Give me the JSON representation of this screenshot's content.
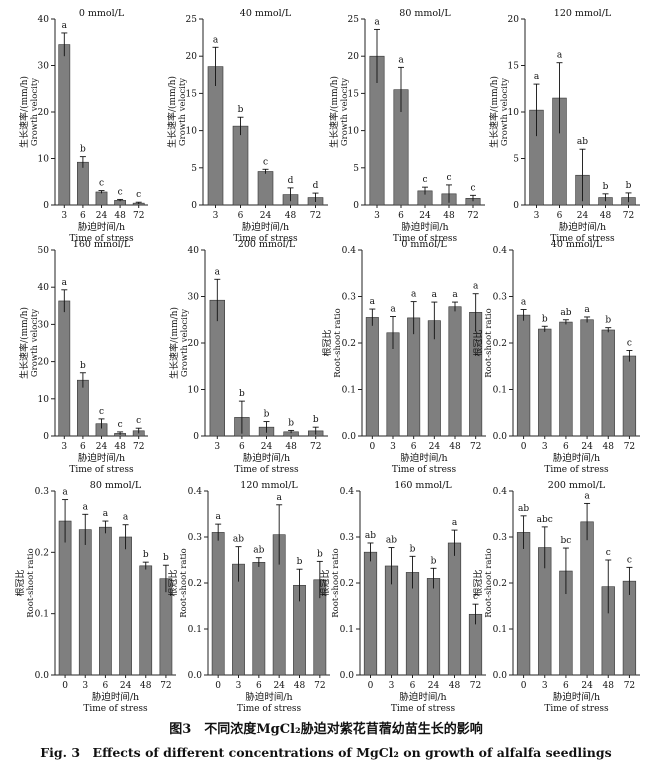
{
  "caption": {
    "cn": "图3　不同浓度MgCl₂胁迫对紫花苜蓿幼苗生长的影响",
    "en": "Fig. 3　Effects of different concentrations of MgCl₂ on growth of alfalfa seedlings"
  },
  "axis_text": {
    "xlabel_cn": "胁迫时间/h",
    "xlabel_en": "Time of stress",
    "gv_cn": "生长速率/(mm/h)",
    "gv_en": "Growth velocity",
    "rs_cn": "根冠比",
    "rs_en": "Root-shoot ratio"
  },
  "colors": {
    "bar": "#7f7f7f",
    "axis": "#222222"
  },
  "chart_data": [
    {
      "type": "bar",
      "title": "0 mmol/L",
      "categories": [
        "3",
        "6",
        "24",
        "48",
        "72"
      ],
      "values": [
        34.5,
        9.2,
        2.8,
        1.0,
        0.4
      ],
      "errors": [
        2.5,
        1.2,
        0.3,
        0.2,
        0.2
      ],
      "letters": [
        "a",
        "b",
        "c",
        "c",
        "c"
      ],
      "ylim": [
        0,
        40
      ],
      "yticks": [
        0,
        10,
        20,
        30,
        40
      ],
      "metric": "gv"
    },
    {
      "type": "bar",
      "title": "40 mmol/L",
      "categories": [
        "3",
        "6",
        "24",
        "48",
        "72"
      ],
      "values": [
        18.6,
        10.6,
        4.5,
        1.4,
        1.0
      ],
      "errors": [
        2.6,
        1.2,
        0.3,
        0.9,
        0.6
      ],
      "letters": [
        "a",
        "b",
        "c",
        "d",
        "d"
      ],
      "ylim": [
        0,
        25
      ],
      "yticks": [
        0,
        5,
        10,
        15,
        20,
        25
      ],
      "metric": "gv"
    },
    {
      "type": "bar",
      "title": "80 mmol/L",
      "categories": [
        "3",
        "6",
        "24",
        "48",
        "72"
      ],
      "values": [
        20.0,
        15.5,
        1.9,
        1.5,
        0.9
      ],
      "errors": [
        3.6,
        3.0,
        0.5,
        1.2,
        0.4
      ],
      "letters": [
        "a",
        "a",
        "c",
        "c",
        "c"
      ],
      "ylim": [
        0,
        25
      ],
      "yticks": [
        0,
        5,
        10,
        15,
        20,
        25
      ],
      "metric": "gv"
    },
    {
      "type": "bar",
      "title": "120 mmol/L",
      "categories": [
        "3",
        "6",
        "24",
        "48",
        "72"
      ],
      "values": [
        10.2,
        11.5,
        3.2,
        0.8,
        0.8
      ],
      "errors": [
        2.8,
        3.8,
        2.8,
        0.4,
        0.5
      ],
      "letters": [
        "a",
        "a",
        "ab",
        "b",
        "b"
      ],
      "ylim": [
        0,
        20
      ],
      "yticks": [
        0,
        5,
        10,
        15,
        20
      ],
      "metric": "gv"
    },
    {
      "type": "bar",
      "title": "160 mmol/L",
      "categories": [
        "3",
        "6",
        "24",
        "48",
        "72"
      ],
      "values": [
        36.3,
        15.0,
        3.3,
        0.7,
        1.4
      ],
      "errors": [
        3.0,
        2.0,
        1.3,
        0.4,
        0.7
      ],
      "letters": [
        "a",
        "b",
        "c",
        "c",
        "c"
      ],
      "ylim": [
        0,
        50
      ],
      "yticks": [
        0,
        10,
        20,
        30,
        40,
        50
      ],
      "metric": "gv"
    },
    {
      "type": "bar",
      "title": "200 mmol/L",
      "categories": [
        "3",
        "6",
        "24",
        "48",
        "72"
      ],
      "values": [
        29.2,
        4.0,
        1.9,
        0.9,
        1.1
      ],
      "errors": [
        4.5,
        3.5,
        1.2,
        0.3,
        0.8
      ],
      "letters": [
        "a",
        "b",
        "b",
        "b",
        "b"
      ],
      "ylim": [
        0,
        40
      ],
      "yticks": [
        0,
        10,
        20,
        30,
        40
      ],
      "metric": "gv"
    },
    {
      "type": "bar",
      "title": "0 mmol/L",
      "categories": [
        "0",
        "3",
        "6",
        "24",
        "48",
        "72"
      ],
      "values": [
        0.255,
        0.222,
        0.254,
        0.248,
        0.278,
        0.266
      ],
      "errors": [
        0.018,
        0.035,
        0.035,
        0.04,
        0.01,
        0.04
      ],
      "letters": [
        "a",
        "a",
        "a",
        "a",
        "a",
        "a"
      ],
      "ylim": [
        0,
        0.4
      ],
      "yticks": [
        0,
        0.1,
        0.2,
        0.3,
        0.4
      ],
      "metric": "rs"
    },
    {
      "type": "bar",
      "title": "40 mmol/L",
      "categories": [
        "0",
        "3",
        "6",
        "24",
        "48",
        "72"
      ],
      "values": [
        0.26,
        0.23,
        0.245,
        0.25,
        0.228,
        0.172
      ],
      "errors": [
        0.012,
        0.006,
        0.005,
        0.006,
        0.005,
        0.012
      ],
      "letters": [
        "a",
        "b",
        "ab",
        "a",
        "b",
        "c"
      ],
      "ylim": [
        0,
        0.4
      ],
      "yticks": [
        0,
        0.1,
        0.2,
        0.3,
        0.4
      ],
      "metric": "rs"
    },
    {
      "type": "bar",
      "title": "80 mmol/L",
      "categories": [
        "0",
        "3",
        "6",
        "24",
        "48",
        "72"
      ],
      "values": [
        0.251,
        0.237,
        0.241,
        0.225,
        0.178,
        0.157
      ],
      "errors": [
        0.035,
        0.025,
        0.01,
        0.02,
        0.006,
        0.022
      ],
      "letters": [
        "a",
        "a",
        "a",
        "a",
        "b",
        "b"
      ],
      "ylim": [
        0,
        0.3
      ],
      "yticks": [
        0,
        0.1,
        0.2,
        0.3
      ],
      "metric": "rs"
    },
    {
      "type": "bar",
      "title": "120 mmol/L",
      "categories": [
        "0",
        "3",
        "6",
        "24",
        "48",
        "72"
      ],
      "values": [
        0.31,
        0.241,
        0.245,
        0.305,
        0.195,
        0.207
      ],
      "errors": [
        0.018,
        0.038,
        0.01,
        0.065,
        0.035,
        0.04
      ],
      "letters": [
        "a",
        "ab",
        "ab",
        "a",
        "b",
        "b"
      ],
      "ylim": [
        0,
        0.4
      ],
      "yticks": [
        0,
        0.1,
        0.2,
        0.3,
        0.4
      ],
      "metric": "rs"
    },
    {
      "type": "bar",
      "title": "160 mmol/L",
      "categories": [
        "0",
        "3",
        "6",
        "24",
        "48",
        "72"
      ],
      "values": [
        0.267,
        0.237,
        0.223,
        0.21,
        0.287,
        0.132
      ],
      "errors": [
        0.02,
        0.04,
        0.035,
        0.022,
        0.028,
        0.022
      ],
      "letters": [
        "ab",
        "ab",
        "b",
        "b",
        "a",
        "c"
      ],
      "ylim": [
        0,
        0.4
      ],
      "yticks": [
        0,
        0.1,
        0.2,
        0.3,
        0.4
      ],
      "metric": "rs"
    },
    {
      "type": "bar",
      "title": "200 mmol/L",
      "categories": [
        "0",
        "3",
        "6",
        "24",
        "48",
        "72"
      ],
      "values": [
        0.31,
        0.277,
        0.226,
        0.333,
        0.192,
        0.204
      ],
      "errors": [
        0.036,
        0.045,
        0.05,
        0.04,
        0.058,
        0.03
      ],
      "letters": [
        "ab",
        "abc",
        "bc",
        "a",
        "c",
        "c"
      ],
      "ylim": [
        0,
        0.4
      ],
      "yticks": [
        0,
        0.1,
        0.2,
        0.3,
        0.4
      ],
      "metric": "rs"
    }
  ]
}
